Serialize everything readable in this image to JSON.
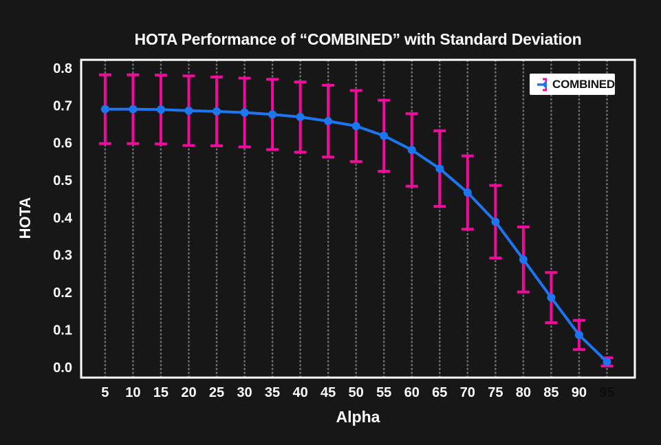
{
  "title": "HOTA Performance of “COMBINED” with Standard Deviation",
  "legend": {
    "label": "COMBINED"
  },
  "colors": {
    "background": "#171717",
    "line": "#1e75f0",
    "error_bar": "#ef0b9b",
    "grid": "#6f6f6f",
    "plot_border": "#ffffff",
    "tick_text": "#ffffff",
    "muted_xtick": "#0d0d0d",
    "legend_bg": "#ffffff",
    "legend_text": "#111111"
  },
  "chart_data": {
    "type": "line",
    "title": "HOTA Performance of “COMBINED” with Standard Deviation",
    "xlabel": "Alpha",
    "ylabel": "HOTA",
    "x": [
      5,
      10,
      15,
      20,
      25,
      30,
      35,
      40,
      45,
      50,
      55,
      60,
      65,
      70,
      75,
      80,
      85,
      90,
      95
    ],
    "series": [
      {
        "name": "COMBINED",
        "values": [
          0.69,
          0.69,
          0.689,
          0.686,
          0.684,
          0.681,
          0.676,
          0.669,
          0.658,
          0.645,
          0.619,
          0.581,
          0.531,
          0.467,
          0.389,
          0.288,
          0.186,
          0.086,
          0.014
        ],
        "std": [
          0.092,
          0.092,
          0.092,
          0.093,
          0.092,
          0.092,
          0.094,
          0.094,
          0.096,
          0.095,
          0.095,
          0.097,
          0.101,
          0.098,
          0.097,
          0.087,
          0.067,
          0.039,
          0.011
        ]
      }
    ],
    "xticks": [
      5,
      10,
      15,
      20,
      25,
      30,
      35,
      40,
      45,
      50,
      55,
      60,
      65,
      70,
      75,
      80,
      85,
      90,
      95
    ],
    "yticks": [
      0.0,
      0.1,
      0.2,
      0.3,
      0.4,
      0.5,
      0.6,
      0.7,
      0.8
    ],
    "xlim": [
      0.7,
      100.0
    ],
    "ylim": [
      -0.028,
      0.822
    ],
    "grid": "vertical-dotted",
    "legend_position": "upper-right",
    "muted_last_xtick": true
  }
}
